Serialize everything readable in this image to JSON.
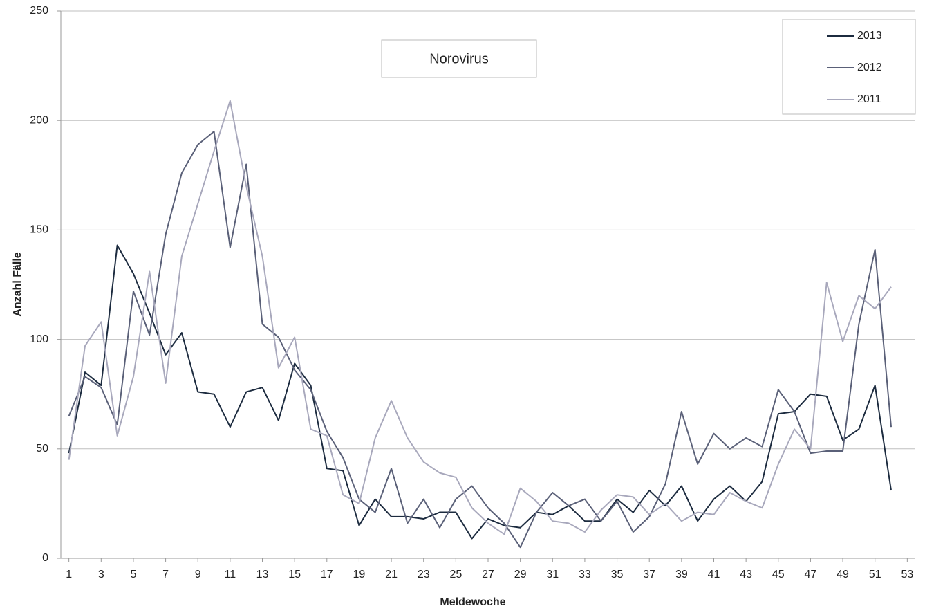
{
  "chart_data": {
    "type": "line",
    "title": "Norovirus",
    "x_label": "Meldewoche",
    "y_label": "Anzahl Fälle",
    "x": [
      1,
      2,
      3,
      4,
      5,
      6,
      7,
      8,
      9,
      10,
      11,
      12,
      13,
      14,
      15,
      16,
      17,
      18,
      19,
      20,
      21,
      22,
      23,
      24,
      25,
      26,
      27,
      28,
      29,
      30,
      31,
      32,
      33,
      34,
      35,
      36,
      37,
      38,
      39,
      40,
      41,
      42,
      43,
      44,
      45,
      46,
      47,
      48,
      49,
      50,
      51,
      52
    ],
    "series": [
      {
        "name": "2013",
        "color": "#1c2b3f",
        "values": [
          48,
          85,
          79,
          143,
          130,
          112,
          93,
          103,
          76,
          75,
          60,
          76,
          78,
          63,
          89,
          79,
          41,
          40,
          15,
          27,
          19,
          19,
          18,
          21,
          21,
          9,
          18,
          15,
          14,
          21,
          20,
          24,
          17,
          17,
          27,
          21,
          31,
          24,
          33,
          17,
          27,
          33,
          26,
          35,
          66,
          67,
          75,
          74,
          54,
          59,
          79,
          31
        ]
      },
      {
        "name": "2012",
        "color": "#5a6078",
        "values": [
          65,
          83,
          78,
          61,
          122,
          102,
          148,
          176,
          189,
          195,
          142,
          180,
          107,
          101,
          86,
          77,
          58,
          46,
          27,
          21,
          41,
          16,
          27,
          14,
          27,
          33,
          23,
          16,
          5,
          21,
          30,
          24,
          27,
          17,
          26,
          12,
          19,
          34,
          67,
          43,
          57,
          50,
          55,
          51,
          77,
          67,
          48,
          49,
          49,
          107,
          141,
          60
        ]
      },
      {
        "name": "2011",
        "color": "#a8a8bc",
        "values": [
          45,
          97,
          108,
          56,
          83,
          131,
          80,
          138,
          162,
          186,
          209,
          170,
          138,
          87,
          101,
          59,
          56,
          29,
          25,
          55,
          72,
          55,
          44,
          39,
          37,
          23,
          16,
          11,
          32,
          26,
          17,
          16,
          12,
          22,
          29,
          28,
          20,
          25,
          17,
          21,
          20,
          30,
          26,
          23,
          43,
          59,
          50,
          126,
          99,
          120,
          114,
          124
        ]
      }
    ],
    "xlim": [
      0.5,
      53.5
    ],
    "xticks": [
      1,
      3,
      5,
      7,
      9,
      11,
      13,
      15,
      17,
      19,
      21,
      23,
      25,
      27,
      29,
      31,
      33,
      35,
      37,
      39,
      41,
      43,
      45,
      47,
      49,
      51,
      53
    ],
    "ylim": [
      0,
      250
    ],
    "yticks": [
      0,
      50,
      100,
      150,
      200,
      250
    ],
    "grid": true,
    "legend": "top-right"
  }
}
